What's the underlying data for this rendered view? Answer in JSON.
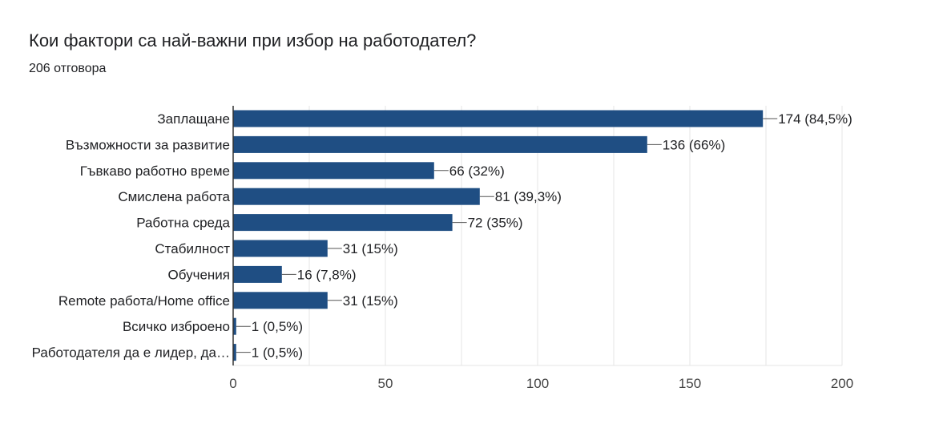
{
  "header": {
    "title": "Кои фактори са най-важни при избор на работодател?",
    "responses": "206 отговора"
  },
  "chart_data": {
    "type": "bar",
    "orientation": "horizontal",
    "title": "Кои фактори са най-важни при избор на работодател?",
    "subtitle": "206 отговора",
    "categories": [
      "Заплащане",
      "Възможности за развитие",
      "Гъвкаво работно време",
      "Смислена работа",
      "Работна среда",
      "Стабилност",
      "Обучения",
      "Remote работа/Home office",
      "Всичко изброено",
      "Работодателя да е лидер, да…"
    ],
    "values": [
      174,
      136,
      66,
      81,
      72,
      31,
      16,
      31,
      1,
      1
    ],
    "value_labels": [
      "174 (84,5%)",
      "136 (66%)",
      "66 (32%)",
      "81 (39,3%)",
      "72 (35%)",
      "31 (15%)",
      "16 (7,8%)",
      "31 (15%)",
      "1 (0,5%)",
      "1 (0,5%)"
    ],
    "xlim": [
      0,
      200
    ],
    "xticks": [
      0,
      50,
      100,
      150,
      200
    ],
    "grid": true,
    "bar_color": "#1f4e83",
    "grid_color": "#e6e6e6",
    "axis_color": "#333333"
  }
}
